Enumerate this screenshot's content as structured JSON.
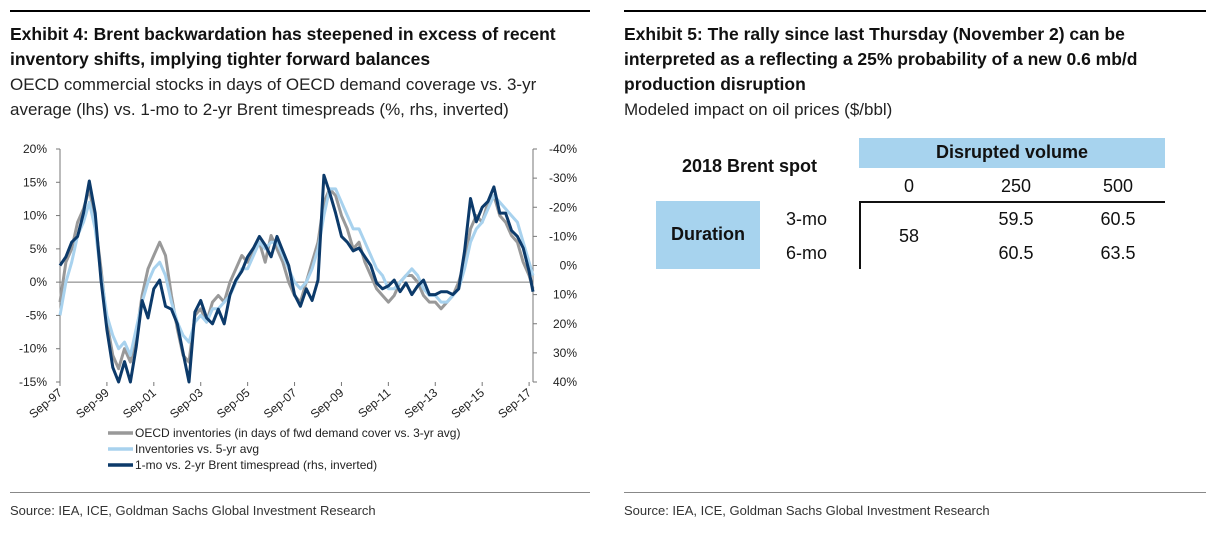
{
  "left": {
    "title": "Exhibit 4: Brent backwardation has steepened in excess of recent inventory shifts, implying tighter forward balances",
    "subtitle": "OECD commercial stocks in days of OECD demand coverage vs. 3-yr average (lhs) vs. 1-mo to 2-yr Brent timespreads (%, rhs, inverted)",
    "source": "Source: IEA, ICE, Goldman Sachs Global Investment Research"
  },
  "right": {
    "title": "Exhibit 5: The rally since last Thursday (November 2) can be interpreted as a reflecting a 25% probability of a new 0.6 mb/d production disruption",
    "subtitle": "Modeled impact on oil prices ($/bbl)",
    "source": "Source: IEA, ICE, Goldman Sachs Global Investment Research",
    "table": {
      "corner_label": "2018 Brent spot",
      "col_group_label": "Disrupted volume",
      "col_headers": [
        "0",
        "250",
        "500"
      ],
      "row_group_label": "Duration",
      "row_labels": [
        "3-mo",
        "6-mo"
      ],
      "base_value": "58",
      "values": [
        [
          "59.5",
          "60.5"
        ],
        [
          "60.5",
          "63.5"
        ]
      ]
    },
    "colors": {
      "header_fill": "#a7d3ee"
    }
  },
  "chart_data": {
    "type": "line",
    "x_tick_labels": [
      "Sep-97",
      "Sep-99",
      "Sep-01",
      "Sep-03",
      "Sep-05",
      "Sep-07",
      "Sep-09",
      "Sep-11",
      "Sep-13",
      "Sep-15",
      "Sep-17"
    ],
    "y_left_ticks": [
      "20%",
      "15%",
      "10%",
      "5%",
      "0%",
      "-5%",
      "-10%",
      "-15%"
    ],
    "y_left_range": [
      -15,
      20
    ],
    "y_right_ticks": [
      "-40%",
      "-30%",
      "-20%",
      "-10%",
      "0%",
      "10%",
      "20%",
      "30%",
      "40%"
    ],
    "y_right_range": [
      -40,
      40
    ],
    "y_right_inverted": true,
    "x_range": [
      "1997-09",
      "2017-11"
    ],
    "legend_position": "bottom",
    "series": [
      {
        "name": "OECD inventories (in days of fwd demand cover vs. 3-yr avg)",
        "axis": "left",
        "color": "#999999",
        "points": [
          [
            "1997-09",
            -3
          ],
          [
            "1997-12",
            3
          ],
          [
            "1998-03",
            5
          ],
          [
            "1998-06",
            9
          ],
          [
            "1998-09",
            11
          ],
          [
            "1998-12",
            14
          ],
          [
            "1999-03",
            9
          ],
          [
            "1999-06",
            2
          ],
          [
            "1999-09",
            -6
          ],
          [
            "1999-12",
            -11
          ],
          [
            "2000-03",
            -13
          ],
          [
            "2000-06",
            -10
          ],
          [
            "2000-09",
            -12
          ],
          [
            "2000-12",
            -8
          ],
          [
            "2001-03",
            -2
          ],
          [
            "2001-06",
            2
          ],
          [
            "2001-09",
            4
          ],
          [
            "2001-12",
            6
          ],
          [
            "2002-03",
            4
          ],
          [
            "2002-06",
            -2
          ],
          [
            "2002-09",
            -7
          ],
          [
            "2002-12",
            -11
          ],
          [
            "2003-03",
            -12
          ],
          [
            "2003-06",
            -5
          ],
          [
            "2003-09",
            -4
          ],
          [
            "2003-12",
            -6
          ],
          [
            "2004-03",
            -3
          ],
          [
            "2004-06",
            -2
          ],
          [
            "2004-09",
            -3
          ],
          [
            "2004-12",
            0
          ],
          [
            "2005-03",
            2
          ],
          [
            "2005-06",
            4
          ],
          [
            "2005-09",
            3
          ],
          [
            "2005-12",
            5
          ],
          [
            "2006-03",
            6
          ],
          [
            "2006-06",
            3
          ],
          [
            "2006-09",
            7
          ],
          [
            "2006-12",
            5
          ],
          [
            "2007-03",
            3
          ],
          [
            "2007-06",
            0
          ],
          [
            "2007-09",
            -2
          ],
          [
            "2007-12",
            -3
          ],
          [
            "2008-03",
            0
          ],
          [
            "2008-06",
            3
          ],
          [
            "2008-09",
            6
          ],
          [
            "2008-12",
            12
          ],
          [
            "2009-03",
            14
          ],
          [
            "2009-06",
            13
          ],
          [
            "2009-09",
            10
          ],
          [
            "2009-12",
            8
          ],
          [
            "2010-03",
            5
          ],
          [
            "2010-06",
            6
          ],
          [
            "2010-09",
            3
          ],
          [
            "2010-12",
            1
          ],
          [
            "2011-03",
            -1
          ],
          [
            "2011-06",
            -2
          ],
          [
            "2011-09",
            -3
          ],
          [
            "2011-12",
            -2
          ],
          [
            "2012-03",
            0
          ],
          [
            "2012-06",
            1
          ],
          [
            "2012-09",
            1
          ],
          [
            "2012-12",
            0
          ],
          [
            "2013-03",
            -2
          ],
          [
            "2013-06",
            -3
          ],
          [
            "2013-09",
            -3
          ],
          [
            "2013-12",
            -4
          ],
          [
            "2014-03",
            -3
          ],
          [
            "2014-06",
            -2
          ],
          [
            "2014-09",
            0
          ],
          [
            "2014-12",
            3
          ],
          [
            "2015-03",
            8
          ],
          [
            "2015-06",
            10
          ],
          [
            "2015-09",
            9
          ],
          [
            "2015-12",
            12
          ],
          [
            "2016-03",
            13
          ],
          [
            "2016-06",
            10
          ],
          [
            "2016-09",
            9
          ],
          [
            "2016-12",
            7
          ],
          [
            "2017-03",
            6
          ],
          [
            "2017-06",
            3
          ],
          [
            "2017-09",
            1
          ],
          [
            "2017-11",
            -1
          ]
        ]
      },
      {
        "name": "Inventories vs. 5-yr avg",
        "axis": "left",
        "color": "#a8d2ee",
        "points": [
          [
            "1997-09",
            -5
          ],
          [
            "1997-12",
            0
          ],
          [
            "1998-03",
            3
          ],
          [
            "1998-06",
            7
          ],
          [
            "1998-09",
            9
          ],
          [
            "1998-12",
            12
          ],
          [
            "1999-03",
            8
          ],
          [
            "1999-06",
            1
          ],
          [
            "1999-09",
            -5
          ],
          [
            "1999-12",
            -8
          ],
          [
            "2000-03",
            -10
          ],
          [
            "2000-06",
            -9
          ],
          [
            "2000-09",
            -11
          ],
          [
            "2000-12",
            -7
          ],
          [
            "2001-03",
            -3
          ],
          [
            "2001-06",
            0
          ],
          [
            "2001-09",
            2
          ],
          [
            "2001-12",
            3
          ],
          [
            "2002-03",
            1
          ],
          [
            "2002-06",
            -3
          ],
          [
            "2002-09",
            -6
          ],
          [
            "2002-12",
            -8
          ],
          [
            "2003-03",
            -9
          ],
          [
            "2003-06",
            -6
          ],
          [
            "2003-09",
            -5
          ],
          [
            "2003-12",
            -6
          ],
          [
            "2004-03",
            -4
          ],
          [
            "2004-06",
            -4
          ],
          [
            "2004-09",
            -3
          ],
          [
            "2004-12",
            -2
          ],
          [
            "2005-03",
            0
          ],
          [
            "2005-06",
            2
          ],
          [
            "2005-09",
            2
          ],
          [
            "2005-12",
            4
          ],
          [
            "2006-03",
            6
          ],
          [
            "2006-06",
            5
          ],
          [
            "2006-09",
            6
          ],
          [
            "2006-12",
            6
          ],
          [
            "2007-03",
            4
          ],
          [
            "2007-06",
            2
          ],
          [
            "2007-09",
            0
          ],
          [
            "2007-12",
            -1
          ],
          [
            "2008-03",
            0
          ],
          [
            "2008-06",
            2
          ],
          [
            "2008-09",
            5
          ],
          [
            "2008-12",
            10
          ],
          [
            "2009-03",
            14
          ],
          [
            "2009-06",
            14
          ],
          [
            "2009-09",
            12
          ],
          [
            "2009-12",
            10
          ],
          [
            "2010-03",
            8
          ],
          [
            "2010-06",
            8
          ],
          [
            "2010-09",
            6
          ],
          [
            "2010-12",
            4
          ],
          [
            "2011-03",
            2
          ],
          [
            "2011-06",
            1
          ],
          [
            "2011-09",
            -1
          ],
          [
            "2011-12",
            -1
          ],
          [
            "2012-03",
            0
          ],
          [
            "2012-06",
            1
          ],
          [
            "2012-09",
            2
          ],
          [
            "2012-12",
            1
          ],
          [
            "2013-03",
            -1
          ],
          [
            "2013-06",
            -2
          ],
          [
            "2013-09",
            -2
          ],
          [
            "2013-12",
            -3
          ],
          [
            "2014-03",
            -3
          ],
          [
            "2014-06",
            -2
          ],
          [
            "2014-09",
            -1
          ],
          [
            "2014-12",
            2
          ],
          [
            "2015-03",
            6
          ],
          [
            "2015-06",
            8
          ],
          [
            "2015-09",
            9
          ],
          [
            "2015-12",
            11
          ],
          [
            "2016-03",
            13
          ],
          [
            "2016-06",
            12
          ],
          [
            "2016-09",
            11
          ],
          [
            "2016-12",
            10
          ],
          [
            "2017-03",
            9
          ],
          [
            "2017-06",
            6
          ],
          [
            "2017-09",
            3
          ],
          [
            "2017-11",
            1
          ]
        ]
      },
      {
        "name": "1-mo vs. 2-yr Brent timespread (rhs, inverted)",
        "axis": "right",
        "color": "#0c3a6a",
        "points": [
          [
            "1997-09",
            0
          ],
          [
            "1997-12",
            -3
          ],
          [
            "1998-03",
            -8
          ],
          [
            "1998-06",
            -10
          ],
          [
            "1998-09",
            -18
          ],
          [
            "1998-12",
            -29
          ],
          [
            "1999-03",
            -18
          ],
          [
            "1999-06",
            5
          ],
          [
            "1999-09",
            22
          ],
          [
            "1999-12",
            35
          ],
          [
            "2000-03",
            40
          ],
          [
            "2000-06",
            33
          ],
          [
            "2000-09",
            40
          ],
          [
            "2000-12",
            28
          ],
          [
            "2001-03",
            12
          ],
          [
            "2001-06",
            18
          ],
          [
            "2001-09",
            8
          ],
          [
            "2001-12",
            5
          ],
          [
            "2002-03",
            14
          ],
          [
            "2002-06",
            15
          ],
          [
            "2002-09",
            20
          ],
          [
            "2002-12",
            30
          ],
          [
            "2003-03",
            40
          ],
          [
            "2003-06",
            16
          ],
          [
            "2003-09",
            12
          ],
          [
            "2003-12",
            18
          ],
          [
            "2004-03",
            20
          ],
          [
            "2004-06",
            15
          ],
          [
            "2004-09",
            20
          ],
          [
            "2004-12",
            10
          ],
          [
            "2005-03",
            5
          ],
          [
            "2005-06",
            2
          ],
          [
            "2005-09",
            -3
          ],
          [
            "2005-12",
            -6
          ],
          [
            "2006-03",
            -10
          ],
          [
            "2006-06",
            -7
          ],
          [
            "2006-09",
            -3
          ],
          [
            "2006-12",
            -10
          ],
          [
            "2007-03",
            -5
          ],
          [
            "2007-06",
            0
          ],
          [
            "2007-09",
            10
          ],
          [
            "2007-12",
            14
          ],
          [
            "2008-03",
            8
          ],
          [
            "2008-06",
            12
          ],
          [
            "2008-09",
            5
          ],
          [
            "2008-12",
            -31
          ],
          [
            "2009-03",
            -25
          ],
          [
            "2009-06",
            -18
          ],
          [
            "2009-09",
            -10
          ],
          [
            "2009-12",
            -8
          ],
          [
            "2010-03",
            -5
          ],
          [
            "2010-06",
            -6
          ],
          [
            "2010-09",
            -3
          ],
          [
            "2010-12",
            0
          ],
          [
            "2011-03",
            6
          ],
          [
            "2011-06",
            8
          ],
          [
            "2011-09",
            7
          ],
          [
            "2011-12",
            5
          ],
          [
            "2012-03",
            9
          ],
          [
            "2012-06",
            6
          ],
          [
            "2012-09",
            10
          ],
          [
            "2012-12",
            7
          ],
          [
            "2013-03",
            5
          ],
          [
            "2013-06",
            10
          ],
          [
            "2013-09",
            10
          ],
          [
            "2013-12",
            9
          ],
          [
            "2014-03",
            9
          ],
          [
            "2014-06",
            10
          ],
          [
            "2014-09",
            8
          ],
          [
            "2014-12",
            -5
          ],
          [
            "2015-03",
            -23
          ],
          [
            "2015-06",
            -15
          ],
          [
            "2015-09",
            -20
          ],
          [
            "2015-12",
            -22
          ],
          [
            "2016-03",
            -27
          ],
          [
            "2016-06",
            -18
          ],
          [
            "2016-09",
            -18
          ],
          [
            "2016-12",
            -12
          ],
          [
            "2017-03",
            -10
          ],
          [
            "2017-06",
            -6
          ],
          [
            "2017-09",
            2
          ],
          [
            "2017-11",
            9
          ]
        ]
      }
    ]
  }
}
